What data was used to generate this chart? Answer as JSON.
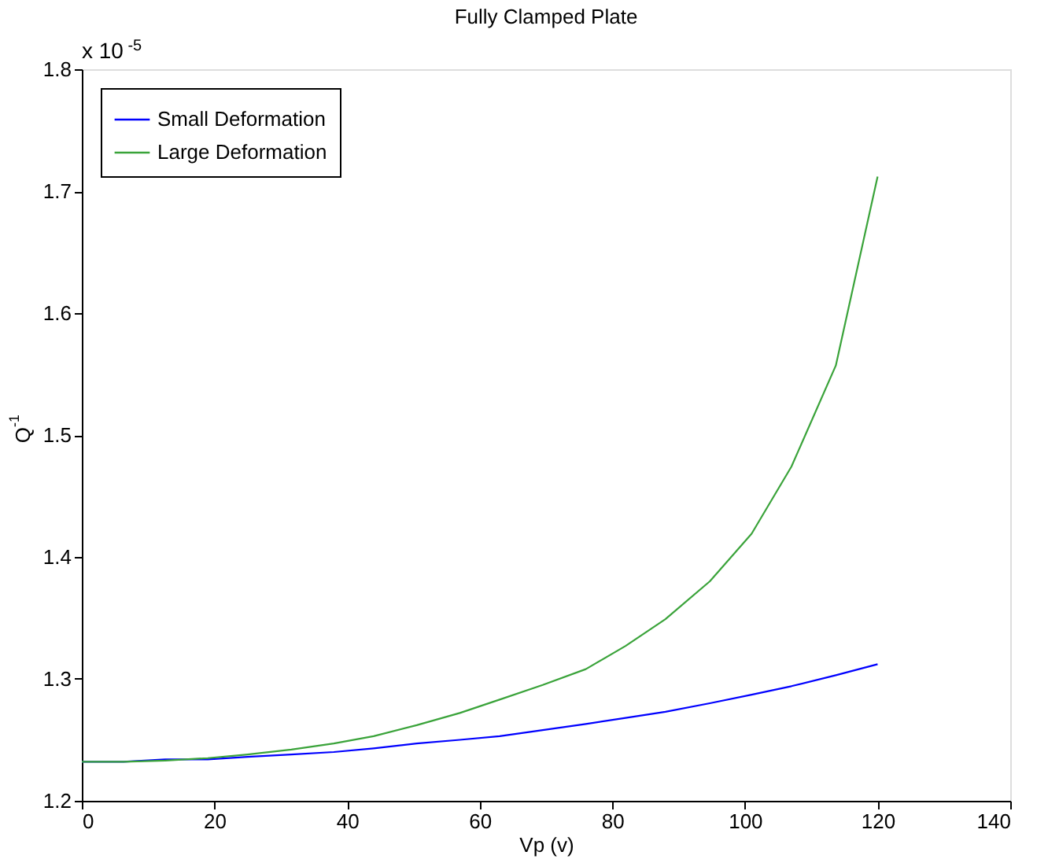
{
  "chart_data": {
    "type": "line",
    "title": "Fully Clamped Plate",
    "xlabel": "Vp (v)",
    "ylabel": "Q$^{-1}$",
    "annotations": [
      "x 10$^{-5}$"
    ],
    "x": [
      0,
      6.3,
      12.6,
      19,
      25,
      31.6,
      38,
      44,
      50.5,
      57,
      63,
      69.5,
      76,
      82,
      88,
      94.7,
      101,
      107,
      113.7,
      120
    ],
    "series": [
      {
        "name": "Small Deformation",
        "color": "#0000ff",
        "values": [
          1.232,
          1.232,
          1.234,
          1.234,
          1.236,
          1.238,
          1.24,
          1.243,
          1.247,
          1.25,
          1.253,
          1.258,
          1.263,
          1.268,
          1.273,
          1.28,
          1.287,
          1.294,
          1.303,
          1.312
        ]
      },
      {
        "name": "Large Deformation",
        "color": "#3aa33a",
        "values": [
          1.232,
          1.232,
          1.233,
          1.235,
          1.238,
          1.242,
          1.247,
          1.253,
          1.262,
          1.272,
          1.283,
          1.295,
          1.308,
          1.327,
          1.349,
          1.38,
          1.419,
          1.474,
          1.557,
          1.712
        ]
      }
    ],
    "xlim": [
      0,
      140
    ],
    "xticks": [
      0,
      20,
      40,
      60,
      80,
      100,
      120,
      140
    ],
    "ylim": [
      1.2,
      1.8
    ],
    "yticks": [
      1.2,
      1.3,
      1.4,
      1.5,
      1.6,
      1.7,
      1.8
    ],
    "grid": false,
    "legend": "top left",
    "marker": "none",
    "line_style": "solid"
  }
}
